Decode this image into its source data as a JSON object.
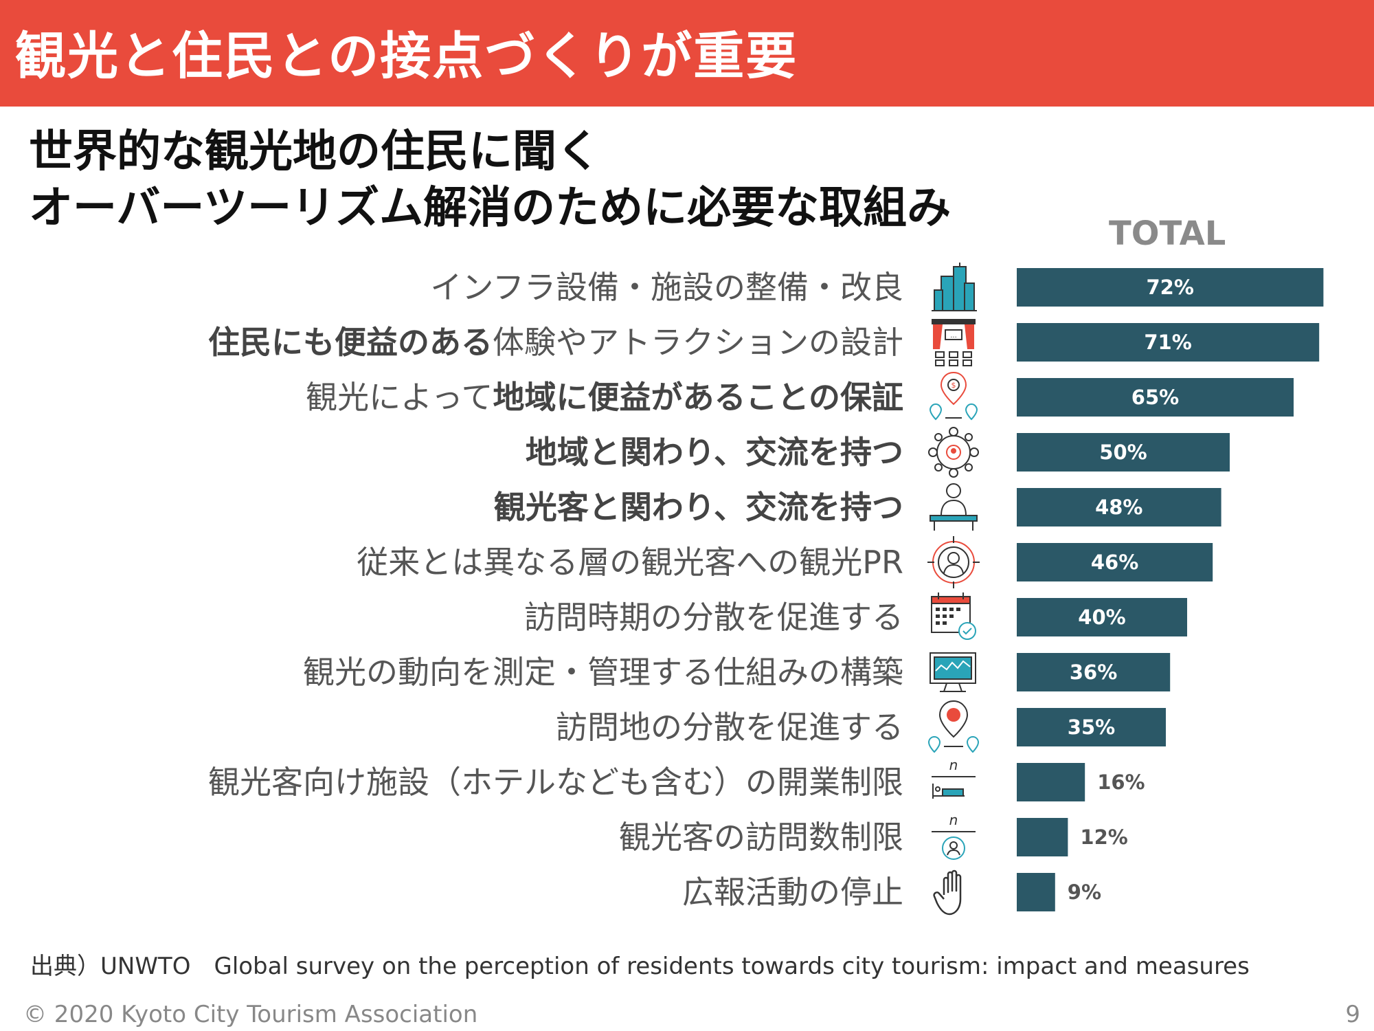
{
  "header": {
    "title": "観光と住民との接点づくりが重要"
  },
  "subtitle": {
    "line1": "世界的な観光地の住民に聞く",
    "line2": "オーバーツーリズム解消のために必要な取組み"
  },
  "chart_data": {
    "type": "bar",
    "orientation": "horizontal",
    "title": "TOTAL",
    "unit": "%",
    "xlim": [
      0,
      100
    ],
    "categories": [
      "インフラ設備・施設の整備・改良",
      "住民にも便益のある体験やアトラクションの設計",
      "観光によって地域に便益があることの保証",
      "地域と関わり、交流を持つ",
      "観光客と関わり、交流を持つ",
      "従来とは異なる層の観光客への観光PR",
      "訪問時期の分散を促進する",
      "観光の動向を測定・管理する仕組みの構築",
      "訪問地の分散を促進する",
      "観光客向け施設（ホテルなども含む）の開業制限",
      "観光客の訪問数制限",
      "広報活動の停止"
    ],
    "values": [
      72,
      71,
      65,
      50,
      48,
      46,
      40,
      36,
      35,
      16,
      12,
      9
    ],
    "labels": [
      "72%",
      "71%",
      "65%",
      "50%",
      "48%",
      "46%",
      "40%",
      "36%",
      "35%",
      "16%",
      "12%",
      "9%"
    ],
    "bar_color": "#2b5867",
    "label_color_inside": "#ffffff",
    "label_color_outside": "#555555"
  },
  "rows": [
    {
      "plain": "インフラ設備・施設の整備・改良",
      "bold": "",
      "tail": "",
      "icon": "building-icon"
    },
    {
      "plain": "",
      "bold": "住民にも便益のある",
      "tail": "体験やアトラクションの設計",
      "icon": "stage-icon"
    },
    {
      "plain": "観光によって",
      "bold": "地域に便益があることの保証",
      "tail": "",
      "icon": "money-location-icon"
    },
    {
      "plain": "",
      "bold": "地域と関わり、交流を持つ",
      "tail": "",
      "icon": "network-icon"
    },
    {
      "plain": "",
      "bold": "観光客と関わり、交流を持つ",
      "tail": "",
      "icon": "speaker-icon"
    },
    {
      "plain": "従来とは異なる層の観光客への観光PR",
      "bold": "",
      "tail": "",
      "icon": "target-person-icon"
    },
    {
      "plain": "訪問時期の分散を促進する",
      "bold": "",
      "tail": "",
      "icon": "calendar-icon"
    },
    {
      "plain": "観光の動向を測定・管理する仕組みの構築",
      "bold": "",
      "tail": "",
      "icon": "monitor-chart-icon"
    },
    {
      "plain": "訪問地の分散を促進する",
      "bold": "",
      "tail": "",
      "icon": "locations-icon"
    },
    {
      "plain": "観光客向け施設（ホテルなども含む）の開業制限",
      "bold": "",
      "tail": "",
      "icon": "hotel-bed-icon"
    },
    {
      "plain": "観光客の訪問数制限",
      "bold": "",
      "tail": "",
      "icon": "visitor-count-icon"
    },
    {
      "plain": "広報活動の停止",
      "bold": "",
      "tail": "",
      "icon": "hand-stop-icon"
    }
  ],
  "icon_symbols": {
    "fraction_n": "n"
  },
  "source": "出典）UNWTO　Global survey on the perception of residents towards city tourism: impact and measures",
  "footer": {
    "copyright": "© 2020 Kyoto City Tourism Association",
    "page": "9"
  },
  "colors": {
    "header_bg": "#e94b3c",
    "bar": "#2b5867",
    "icon_accent": "#e94b3c",
    "icon_teal": "#2aa4b8"
  }
}
